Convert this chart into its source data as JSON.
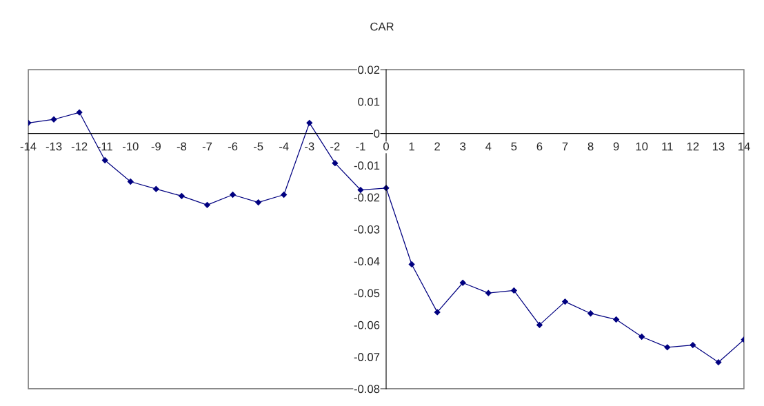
{
  "chart_data": {
    "type": "line",
    "title": "CAR",
    "x": [
      -14,
      -13,
      -12,
      -11,
      -10,
      -9,
      -8,
      -7,
      -6,
      -5,
      -4,
      -3,
      -2,
      -1,
      0,
      1,
      2,
      3,
      4,
      5,
      6,
      7,
      8,
      9,
      10,
      11,
      12,
      13,
      14
    ],
    "series": [
      {
        "color": "#000080",
        "values": [
          0.0033,
          0.0044,
          0.0066,
          -0.0084,
          -0.0151,
          -0.0174,
          -0.0196,
          -0.0224,
          -0.0192,
          -0.0216,
          -0.0192,
          0.0033,
          -0.0093,
          -0.0177,
          -0.0171,
          -0.041,
          -0.056,
          -0.0468,
          -0.05,
          -0.0492,
          -0.06,
          -0.0527,
          -0.0564,
          -0.0583,
          -0.0637,
          -0.067,
          -0.0663,
          -0.0717,
          -0.0646
        ]
      }
    ],
    "xlim": [
      -14,
      14
    ],
    "xticks": [
      -14,
      -13,
      -12,
      -11,
      -10,
      -9,
      -8,
      -7,
      -6,
      -5,
      -4,
      -3,
      -2,
      -1,
      0,
      1,
      2,
      3,
      4,
      5,
      6,
      7,
      8,
      9,
      10,
      11,
      12,
      13,
      14
    ],
    "ylim": [
      -0.08,
      0.02
    ],
    "yticks": [
      -0.08,
      -0.07,
      -0.06,
      -0.05,
      -0.04,
      -0.03,
      -0.02,
      -0.01,
      0,
      0.01,
      0.02
    ],
    "marker": "diamond",
    "line_style": "solid",
    "grid": false,
    "legend": false
  }
}
